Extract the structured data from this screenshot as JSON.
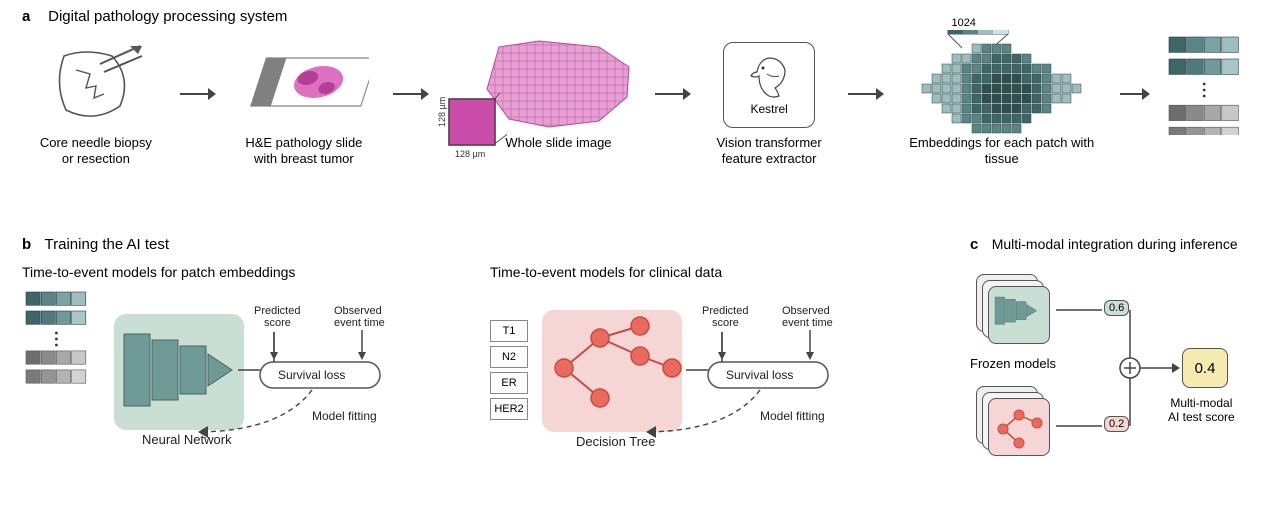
{
  "panelA": {
    "label": "a",
    "title": "Digital pathology processing system",
    "steps": {
      "biopsy": "Core needle biopsy\nor resection",
      "slide": "H&E pathology slide\nwith breast tumor",
      "wsi": "Whole slide image",
      "patch_dim": "128 µm",
      "extractor": "Vision transformer\nfeature extractor",
      "extractor_name": "Kestrel",
      "embedding_dim": "1024",
      "embeddings": "Embeddings for each patch with tissue"
    },
    "colors": {
      "tissue": "#d858b4",
      "tissue_light": "#e8a0d4",
      "teal_dark": "#3d6666",
      "teal_mid": "#5a8585",
      "teal_light": "#9ebebe",
      "gray_dark": "#808080",
      "gray_mid": "#a8a8a8",
      "gray_light": "#cfcfcf",
      "slide_tab": "#808080",
      "outline": "#555555"
    }
  },
  "panelB": {
    "label": "b",
    "title": "Training the AI test",
    "sub_left": "Time-to-event models for patch embeddings",
    "sub_right": "Time-to-event models for clinical data",
    "nn_label": "Neural Network",
    "tree_label": "Decision Tree",
    "predicted": "Predicted\nscore",
    "observed": "Observed\nevent time",
    "survival": "Survival loss",
    "fitting": "Model fitting",
    "clinical_vars": [
      "T1",
      "N2",
      "ER",
      "HER2"
    ],
    "colors": {
      "nn_bg": "#c9dfd3",
      "nn_shape": "#6f9a96",
      "tree_bg": "#f6d5d5",
      "tree_node": "#ea6a5f",
      "tree_edge": "#c74b42"
    }
  },
  "panelC": {
    "label": "c",
    "title": "Multi-modal integration during inference",
    "frozen": "Frozen models",
    "score1": "0.6",
    "score2": "0.2",
    "final": "0.4",
    "final_label": "Multi-modal\nAI test score",
    "colors": {
      "badge1_bg": "#c9dfd3",
      "badge2_bg": "#f6d5d5",
      "final_bg": "#f5eab0"
    }
  }
}
